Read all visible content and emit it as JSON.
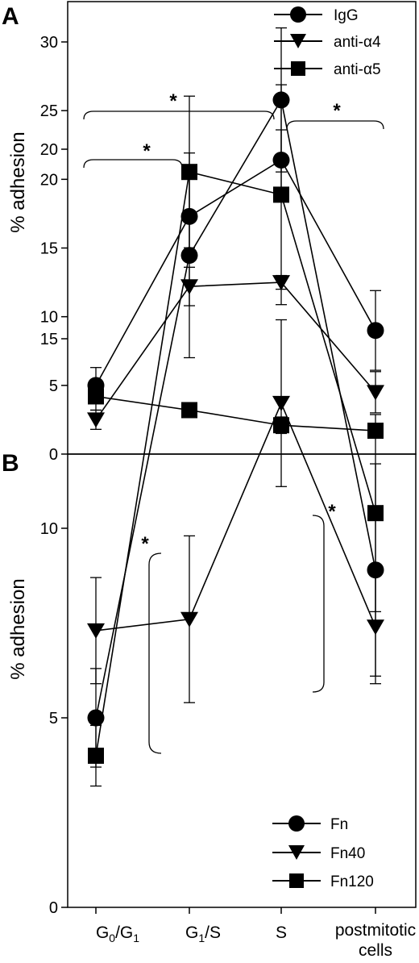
{
  "figure": {
    "categories": [
      "G0/G1",
      "G1/S",
      "S",
      "postmitotic cells"
    ]
  },
  "chart_data": [
    {
      "panel": "A",
      "type": "line",
      "title": "",
      "ylabel": "% adhesion",
      "ylim": [
        0,
        30
      ],
      "yticks": [
        0,
        5,
        10,
        15,
        20,
        25,
        30
      ],
      "legend_position": "top-right",
      "categories": [
        "G0/G1",
        "G1/S",
        "S",
        "postmitotic cells"
      ],
      "series": [
        {
          "name": "IgG",
          "marker": "circle",
          "values": [
            5.0,
            17.3,
            21.4,
            9.0
          ],
          "errors": [
            1.3,
            2.7,
            2.2,
            2.9
          ]
        },
        {
          "name": "anti-α4",
          "marker": "triangle-down",
          "values": [
            2.5,
            12.2,
            12.5,
            4.5
          ],
          "errors": [
            0.7,
            1.4,
            0.5,
            1.5
          ]
        },
        {
          "name": "anti-α5",
          "marker": "square",
          "values": [
            4.2,
            3.2,
            2.1,
            1.7
          ],
          "errors": [
            1.0,
            0.3,
            0.6,
            0.3
          ]
        }
      ],
      "significance": [
        {
          "label": "*",
          "from": "G0/G1",
          "to": "S"
        },
        {
          "label": "*",
          "from": "G0/G1",
          "to": "G1/S"
        },
        {
          "label": "*",
          "from": "S",
          "to": "postmitotic cells"
        }
      ]
    },
    {
      "panel": "B",
      "type": "line",
      "title": "",
      "ylabel": "% adhesion",
      "ylim": [
        0,
        23
      ],
      "yticks": [
        0,
        5,
        10,
        15,
        20
      ],
      "legend_position": "bottom-right",
      "categories": [
        "G0/G1",
        "G1/S",
        "S",
        "postmitotic cells"
      ],
      "series": [
        {
          "name": "Fn",
          "marker": "circle",
          "values": [
            5.0,
            17.2,
            21.3,
            8.9
          ],
          "errors": [
            1.3,
            2.7,
            1.9,
            2.8
          ]
        },
        {
          "name": "Fn40",
          "marker": "triangle-down",
          "values": [
            7.3,
            7.6,
            13.3,
            7.4
          ],
          "errors": [
            1.4,
            2.2,
            2.2,
            1.5
          ]
        },
        {
          "name": "Fn120",
          "marker": "square",
          "values": [
            4.0,
            19.4,
            18.8,
            10.4
          ],
          "errors": [
            0.8,
            2.0,
            2.9,
            2.6
          ]
        }
      ],
      "significance": [
        {
          "label": "*",
          "range": [
            8.0,
            17.0
          ],
          "side": "G1/S"
        },
        {
          "label": "*",
          "range": [
            14.0,
            19.0
          ],
          "side": "S"
        }
      ]
    }
  ]
}
